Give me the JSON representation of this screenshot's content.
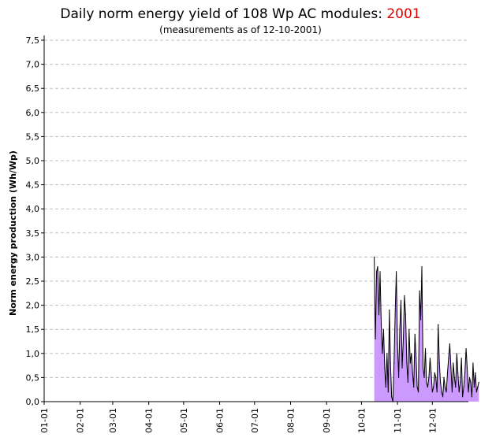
{
  "chart_data": {
    "type": "area",
    "title": "Daily norm energy yield of 108 Wp AC modules:",
    "title_year": "2001",
    "subtitle": "(measurements as of 12-10-2001)",
    "xlabel": "",
    "ylabel": "Norm energy production (Wh/Wp)",
    "ylim": [
      0,
      7.5
    ],
    "yticks": [
      "0,0",
      "0,5",
      "1,0",
      "1,5",
      "2,0",
      "2,5",
      "3,0",
      "3,5",
      "4,0",
      "4,5",
      "5,0",
      "5,5",
      "6,0",
      "6,5",
      "7,0",
      "7,5"
    ],
    "xticks": [
      "01-01",
      "02-01",
      "03-01",
      "04-01",
      "05-01",
      "06-01",
      "07-01",
      "08-01",
      "09-01",
      "10-01",
      "11-01",
      "12-01"
    ],
    "grid": true,
    "colors": {
      "fill": "#cc99ff",
      "line": "#000000",
      "grid": "#c0c0c0",
      "year": "#e00000"
    },
    "series": [
      {
        "x_start": "2001-10-12",
        "values": [
          3.0,
          1.3,
          2.7,
          2.8,
          1.8,
          2.7,
          1.6,
          1.0,
          1.5,
          0.7,
          0.3,
          1.0,
          0.2,
          1.9,
          0.8,
          0.1,
          0.0,
          0.8,
          1.8,
          2.7,
          1.2,
          0.5,
          1.5,
          2.1,
          0.7,
          1.3,
          2.2,
          1.8,
          0.8,
          0.4,
          1.5,
          0.8,
          1.0,
          0.6,
          0.3,
          1.4,
          0.9,
          0.3,
          0.2,
          2.3,
          1.7,
          2.8,
          0.7,
          0.5,
          1.1,
          0.4,
          0.3,
          0.5,
          0.9,
          0.6,
          0.2,
          0.3,
          0.6,
          0.5,
          0.2,
          1.6,
          0.8,
          0.4,
          0.2,
          0.1,
          0.5,
          0.3,
          0.2,
          0.6,
          0.9,
          1.2,
          0.7,
          0.2,
          0.8,
          0.5,
          0.3,
          1.0,
          0.6,
          0.2,
          0.4,
          0.9,
          0.1,
          0.3,
          0.6,
          1.1,
          0.7,
          0.2,
          0.5,
          0.4,
          0.1,
          0.8,
          0.3,
          0.6,
          0.2,
          0.3,
          0.4
        ]
      }
    ]
  }
}
